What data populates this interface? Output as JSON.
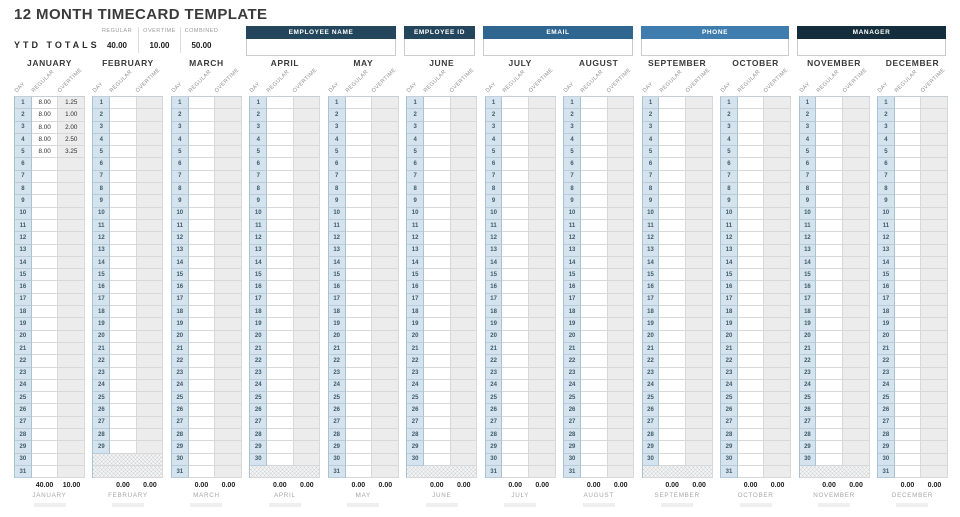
{
  "title": "12 MONTH TIMECARD TEMPLATE",
  "ytd": {
    "label": "YTD TOTALS",
    "columns": [
      {
        "label": "REGULAR",
        "value": "40.00"
      },
      {
        "label": "OVERTIME",
        "value": "10.00"
      },
      {
        "label": "COMBINED",
        "value": "50.00"
      }
    ]
  },
  "employee_fields": [
    {
      "label": "EMPLOYEE NAME",
      "value": "",
      "header_color": "#24465c"
    },
    {
      "label": "EMPLOYEE ID",
      "value": "",
      "header_color": "#24465c"
    },
    {
      "label": "EMAIL",
      "value": "",
      "header_color": "#2e6690"
    },
    {
      "label": "PHONE",
      "value": "",
      "header_color": "#3e7dae"
    },
    {
      "label": "MANAGER",
      "value": "",
      "header_color": "#142d3c"
    }
  ],
  "column_headers": [
    "DAY",
    "REGULAR",
    "OVERTIME"
  ],
  "months": [
    {
      "name": "JANUARY",
      "days_in_month": 31,
      "entries": {
        "1": [
          "8.00",
          "1.25"
        ],
        "2": [
          "8.00",
          "1.00"
        ],
        "3": [
          "8.00",
          "2.00"
        ],
        "4": [
          "8.00",
          "2.50"
        ],
        "5": [
          "8.00",
          "3.25"
        ]
      },
      "total_regular": "40.00",
      "total_overtime": "10.00"
    },
    {
      "name": "FEBRUARY",
      "days_in_month": 29,
      "entries": {},
      "total_regular": "0.00",
      "total_overtime": "0.00"
    },
    {
      "name": "MARCH",
      "days_in_month": 31,
      "entries": {},
      "total_regular": "0.00",
      "total_overtime": "0.00"
    },
    {
      "name": "APRIL",
      "days_in_month": 30,
      "entries": {},
      "total_regular": "0.00",
      "total_overtime": "0.00"
    },
    {
      "name": "MAY",
      "days_in_month": 31,
      "entries": {},
      "total_regular": "0.00",
      "total_overtime": "0.00"
    },
    {
      "name": "JUNE",
      "days_in_month": 30,
      "entries": {},
      "total_regular": "0.00",
      "total_overtime": "0.00"
    },
    {
      "name": "JULY",
      "days_in_month": 31,
      "entries": {},
      "total_regular": "0.00",
      "total_overtime": "0.00"
    },
    {
      "name": "AUGUST",
      "days_in_month": 31,
      "entries": {},
      "total_regular": "0.00",
      "total_overtime": "0.00"
    },
    {
      "name": "SEPTEMBER",
      "days_in_month": 30,
      "entries": {},
      "total_regular": "0.00",
      "total_overtime": "0.00"
    },
    {
      "name": "OCTOBER",
      "days_in_month": 31,
      "entries": {},
      "total_regular": "0.00",
      "total_overtime": "0.00"
    },
    {
      "name": "NOVEMBER",
      "days_in_month": 30,
      "entries": {},
      "total_regular": "0.00",
      "total_overtime": "0.00"
    },
    {
      "name": "DECEMBER",
      "days_in_month": 31,
      "entries": {},
      "total_regular": "0.00",
      "total_overtime": "0.00"
    }
  ]
}
